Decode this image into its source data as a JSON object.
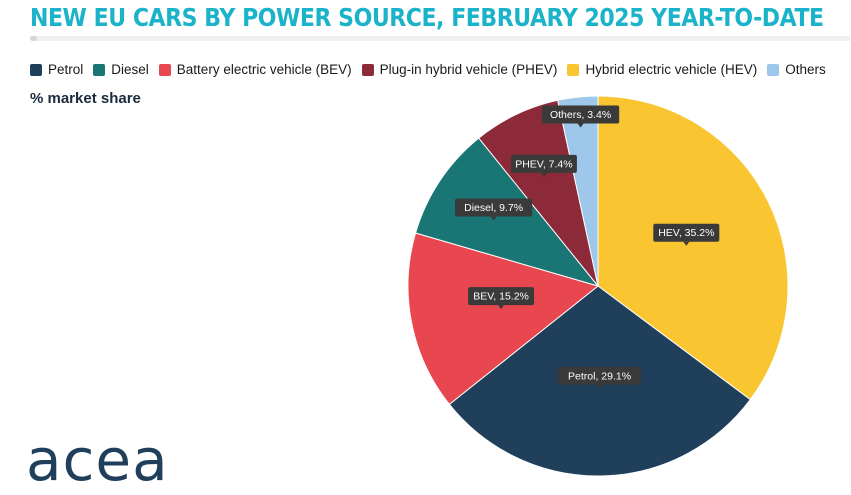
{
  "title": "NEW EU CARS BY POWER SOURCE, FEBRUARY 2025 YEAR-TO-DATE",
  "subtitle": "% market share",
  "logo_text": "acea",
  "colors": {
    "title": "#1bb3c9",
    "petrol": "#1f3f5b",
    "diesel": "#1a7575",
    "bev": "#e8474f",
    "phev": "#8c2a3a",
    "hev": "#f9c531",
    "others": "#9dc7eb",
    "tooltip_bg": "#3a3a3a"
  },
  "chart_data": {
    "type": "pie",
    "title": "NEW EU CARS BY POWER SOURCE, FEBRUARY 2025 YEAR-TO-DATE",
    "unit_label": "% market share",
    "legend_position": "top-left",
    "legend": [
      {
        "label": "Petrol",
        "color": "#1f3f5b"
      },
      {
        "label": "Diesel",
        "color": "#1a7575"
      },
      {
        "label": "Battery electric vehicle (BEV)",
        "color": "#e8474f"
      },
      {
        "label": "Plug-in hybrid vehicle (PHEV)",
        "color": "#8c2a3a"
      },
      {
        "label": "Hybrid electric vehicle (HEV)",
        "color": "#f9c531"
      },
      {
        "label": "Others",
        "color": "#9dc7eb"
      }
    ],
    "slices": [
      {
        "name": "HEV",
        "value": 35.2,
        "label": "HEV, 35.2%",
        "color": "#f9c531"
      },
      {
        "name": "Petrol",
        "value": 29.1,
        "label": "Petrol, 29.1%",
        "color": "#1f3f5b"
      },
      {
        "name": "BEV",
        "value": 15.2,
        "label": "BEV, 15.2%",
        "color": "#e8474f"
      },
      {
        "name": "Diesel",
        "value": 9.7,
        "label": "Diesel, 9.7%",
        "color": "#1a7575"
      },
      {
        "name": "PHEV",
        "value": 7.4,
        "label": "PHEV, 7.4%",
        "color": "#8c2a3a"
      },
      {
        "name": "Others",
        "value": 3.4,
        "label": "Others, 3.4%",
        "color": "#9dc7eb"
      }
    ]
  }
}
